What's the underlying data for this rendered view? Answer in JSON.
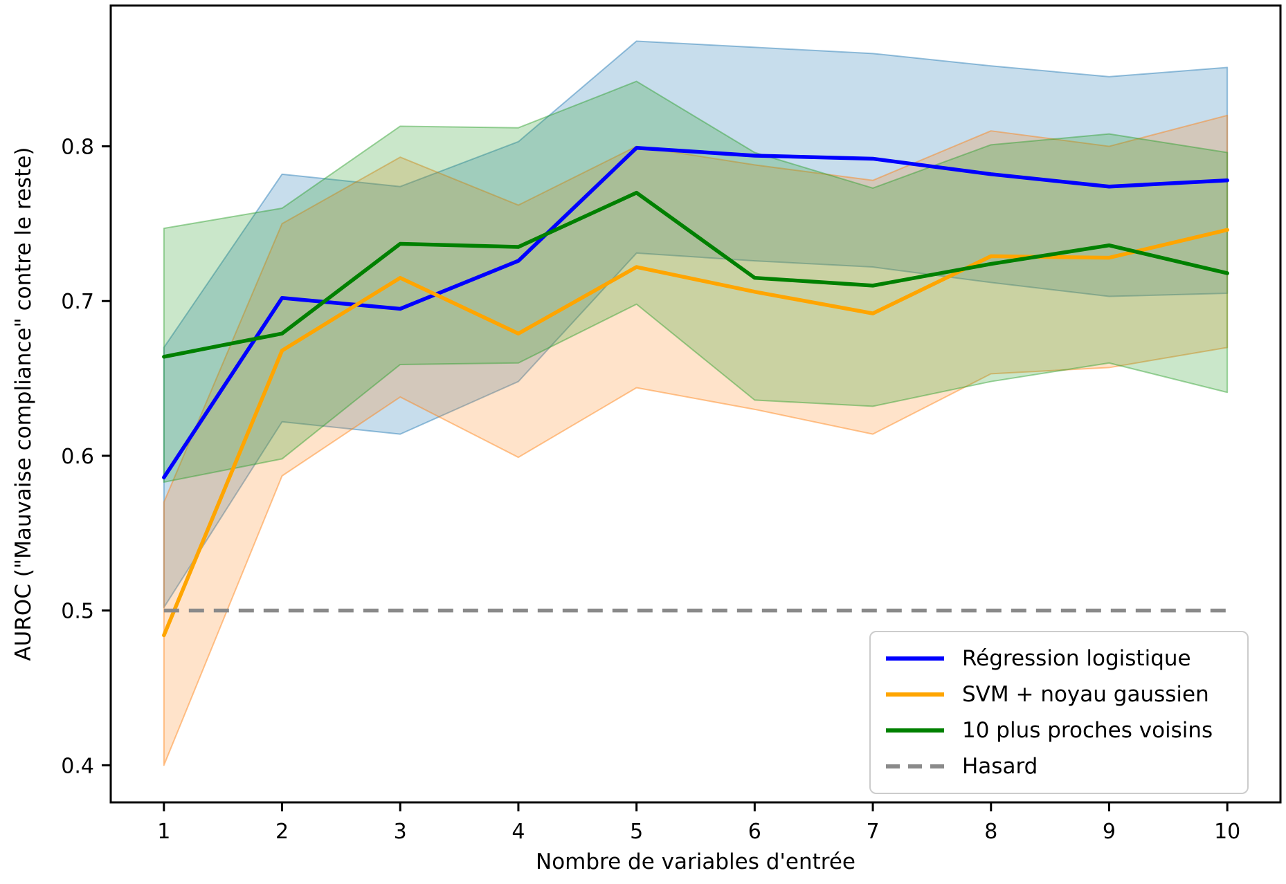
{
  "figure": {
    "xlabel": "Nombre de variables d'entrée",
    "ylabel": "AUROC (\"Mauvaise compliance\" contre le reste)"
  },
  "chart_data": {
    "type": "line",
    "title": "",
    "xlabel": "Nombre de variables d'entrée",
    "ylabel": "AUROC (\"Mauvaise compliance\" contre le reste)",
    "x": [
      1,
      2,
      3,
      4,
      5,
      6,
      7,
      8,
      9,
      10
    ],
    "xlim": [
      0.55,
      10.45
    ],
    "ylim": [
      0.376,
      0.891
    ],
    "xticks": [
      "1",
      "2",
      "3",
      "4",
      "5",
      "6",
      "7",
      "8",
      "9",
      "10"
    ],
    "yticks": [
      "0.4",
      "0.5",
      "0.6",
      "0.7",
      "0.8"
    ],
    "ytick_values": [
      0.4,
      0.5,
      0.6,
      0.7,
      0.8
    ],
    "grid": false,
    "legend_position": "lower right",
    "series": [
      {
        "id": "regression-logistique",
        "name": "Régression logistique",
        "color": "#0000ff",
        "band_color": "#1f77b4",
        "band_opacity": 0.25,
        "values": [
          0.586,
          0.702,
          0.695,
          0.726,
          0.799,
          0.794,
          0.792,
          0.782,
          0.774,
          0.778
        ],
        "band_lower": [
          0.502,
          0.622,
          0.614,
          0.648,
          0.731,
          0.726,
          0.722,
          0.712,
          0.703,
          0.705
        ],
        "band_upper": [
          0.67,
          0.782,
          0.774,
          0.803,
          0.868,
          0.864,
          0.86,
          0.852,
          0.845,
          0.851
        ]
      },
      {
        "id": "svm-noyau-gaussien",
        "name": "SVM + noyau gaussien",
        "color": "#ffa500",
        "band_color": "#ff7f0e",
        "band_opacity": 0.22,
        "values": [
          0.484,
          0.668,
          0.715,
          0.679,
          0.722,
          0.706,
          0.692,
          0.729,
          0.728,
          0.746
        ],
        "band_lower": [
          0.4,
          0.587,
          0.638,
          0.599,
          0.644,
          0.63,
          0.614,
          0.653,
          0.657,
          0.67
        ],
        "band_upper": [
          0.57,
          0.75,
          0.793,
          0.762,
          0.8,
          0.788,
          0.778,
          0.81,
          0.8,
          0.82
        ]
      },
      {
        "id": "dix-plus-proches-voisins",
        "name": "10 plus proches voisins",
        "color": "#008000",
        "band_color": "#2ca02c",
        "band_opacity": 0.25,
        "values": [
          0.664,
          0.679,
          0.737,
          0.735,
          0.77,
          0.715,
          0.71,
          0.724,
          0.736,
          0.718
        ],
        "band_lower": [
          0.583,
          0.598,
          0.659,
          0.66,
          0.698,
          0.636,
          0.632,
          0.648,
          0.66,
          0.641
        ],
        "band_upper": [
          0.747,
          0.76,
          0.813,
          0.812,
          0.842,
          0.796,
          0.773,
          0.801,
          0.808,
          0.796
        ]
      },
      {
        "id": "hasard",
        "name": "Hasard",
        "color": "#8a8a8a",
        "dashed": true,
        "constant": 0.5
      }
    ]
  }
}
